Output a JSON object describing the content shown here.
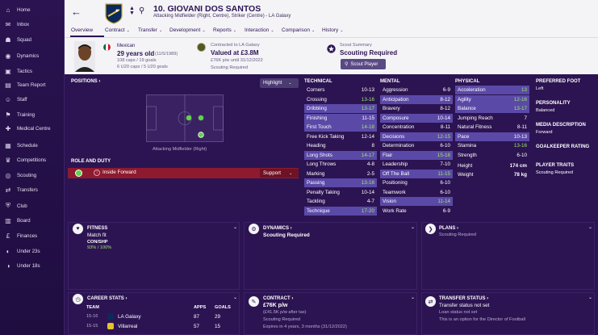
{
  "sidebar": {
    "items": [
      {
        "label": "Home",
        "icon": "home-icon",
        "glyph": "⌂"
      },
      {
        "label": "Inbox",
        "icon": "inbox-icon",
        "glyph": "✉"
      },
      {
        "label": "Squad",
        "icon": "squad-icon",
        "glyph": "☗"
      },
      {
        "label": "Dynamics",
        "icon": "dynamics-icon",
        "glyph": "◉"
      },
      {
        "label": "Tactics",
        "icon": "tactics-icon",
        "glyph": "▣"
      },
      {
        "label": "Team Report",
        "icon": "team-report-icon",
        "glyph": "▤"
      },
      {
        "label": "Staff",
        "icon": "staff-icon",
        "glyph": "☺"
      },
      {
        "label": "Training",
        "icon": "training-icon",
        "glyph": "⚑"
      },
      {
        "label": "Medical Centre",
        "icon": "medical-icon",
        "glyph": "✚"
      },
      {
        "label": "Schedule",
        "icon": "schedule-icon",
        "glyph": "▦"
      },
      {
        "label": "Competitions",
        "icon": "competitions-icon",
        "glyph": "♛"
      },
      {
        "label": "Scouting",
        "icon": "scouting-icon",
        "glyph": "◎"
      },
      {
        "label": "Transfers",
        "icon": "transfers-icon",
        "glyph": "⇄"
      },
      {
        "label": "Club",
        "icon": "club-icon",
        "glyph": "⛨"
      },
      {
        "label": "Board",
        "icon": "board-icon",
        "glyph": "▥"
      },
      {
        "label": "Finances",
        "icon": "finances-icon",
        "glyph": "£"
      },
      {
        "label": "Under 23s",
        "icon": "under23-icon",
        "glyph": "◐"
      },
      {
        "label": "Under 18s",
        "icon": "under18-icon",
        "glyph": "◑"
      }
    ]
  },
  "header": {
    "name": "10. GIOVANI DOS SANTOS",
    "role": "Attacking Midfielder (Right, Centre), Striker (Centre) - LA Galaxy"
  },
  "tabs": [
    "Overview",
    "Contract",
    "Transfer",
    "Development",
    "Reports",
    "Interaction",
    "Comparison",
    "History"
  ],
  "info": {
    "nationality": "Mexican",
    "age": "29 years old",
    "dob": "(11/5/1989)",
    "caps": "108 caps / 19 goals",
    "u20caps": "6 U20 caps / 5 U20 goals",
    "contract_label": "Contracted to LA Galaxy",
    "value": "Valued at £3.8M",
    "wage": "£76K p/w until 31/12/2022",
    "scouting": "Scouting Required",
    "scout_summary_label": "Scout Summary",
    "scout_summary_value": "Scouting Required",
    "scout_button": "Scout Player"
  },
  "positions": {
    "title": "POSITIONS",
    "highlight": "Highlight",
    "caption": "Attacking Midfielder (Right)",
    "role_duty_title": "ROLE AND DUTY",
    "role": "Inside Forward",
    "duty": "Support"
  },
  "technical": {
    "title": "TECHNICAL",
    "rows": [
      {
        "name": "Corners",
        "value": "10-13",
        "hl": false,
        "hi": false
      },
      {
        "name": "Crossing",
        "value": "13-16",
        "hl": false,
        "hi": true
      },
      {
        "name": "Dribbling",
        "value": "13-17",
        "hl": true,
        "hi": true
      },
      {
        "name": "Finishing",
        "value": "11-15",
        "hl": true,
        "hi": false
      },
      {
        "name": "First Touch",
        "value": "14-18",
        "hl": true,
        "hi": true
      },
      {
        "name": "Free Kick Taking",
        "value": "12-14",
        "hl": false,
        "hi": false
      },
      {
        "name": "Heading",
        "value": "8",
        "hl": false,
        "hi": false
      },
      {
        "name": "Long Shots",
        "value": "14-17",
        "hl": true,
        "hi": true
      },
      {
        "name": "Long Throws",
        "value": "4-8",
        "hl": false,
        "hi": false
      },
      {
        "name": "Marking",
        "value": "2-5",
        "hl": false,
        "hi": false
      },
      {
        "name": "Passing",
        "value": "13-16",
        "hl": true,
        "hi": true
      },
      {
        "name": "Penalty Taking",
        "value": "10-14",
        "hl": false,
        "hi": false
      },
      {
        "name": "Tackling",
        "value": "4-7",
        "hl": false,
        "hi": false
      },
      {
        "name": "Technique",
        "value": "17-20",
        "hl": true,
        "hi": true
      }
    ]
  },
  "mental": {
    "title": "MENTAL",
    "rows": [
      {
        "name": "Aggression",
        "value": "6-9",
        "hl": false,
        "hi": false
      },
      {
        "name": "Anticipation",
        "value": "8-12",
        "hl": true,
        "hi": false
      },
      {
        "name": "Bravery",
        "value": "8-12",
        "hl": false,
        "hi": false
      },
      {
        "name": "Composure",
        "value": "10-14",
        "hl": true,
        "hi": false
      },
      {
        "name": "Concentration",
        "value": "8-11",
        "hl": false,
        "hi": false
      },
      {
        "name": "Decisions",
        "value": "12-15",
        "hl": true,
        "hi": true
      },
      {
        "name": "Determination",
        "value": "6-10",
        "hl": false,
        "hi": false
      },
      {
        "name": "Flair",
        "value": "15-18",
        "hl": true,
        "hi": true
      },
      {
        "name": "Leadership",
        "value": "7-10",
        "hl": false,
        "hi": false
      },
      {
        "name": "Off The Ball",
        "value": "11-15",
        "hl": true,
        "hi": true
      },
      {
        "name": "Positioning",
        "value": "6-10",
        "hl": false,
        "hi": false
      },
      {
        "name": "Teamwork",
        "value": "6-10",
        "hl": false,
        "hi": false
      },
      {
        "name": "Vision",
        "value": "11-14",
        "hl": true,
        "hi": true
      },
      {
        "name": "Work Rate",
        "value": "6-9",
        "hl": false,
        "hi": false
      }
    ]
  },
  "physical": {
    "title": "PHYSICAL",
    "rows": [
      {
        "name": "Acceleration",
        "value": "13",
        "hl": true,
        "hi": true
      },
      {
        "name": "Agility",
        "value": "12-16",
        "hl": true,
        "hi": true
      },
      {
        "name": "Balance",
        "value": "13-17",
        "hl": true,
        "hi": true
      },
      {
        "name": "Jumping Reach",
        "value": "7",
        "hl": false,
        "hi": false
      },
      {
        "name": "Natural Fitness",
        "value": "8-11",
        "hl": false,
        "hi": false
      },
      {
        "name": "Pace",
        "value": "10-13",
        "hl": true,
        "hi": false
      },
      {
        "name": "Stamina",
        "value": "13-16",
        "hl": false,
        "hi": true
      },
      {
        "name": "Strength",
        "value": "6-10",
        "hl": false,
        "hi": false
      }
    ],
    "height_label": "Height",
    "height": "174 cm",
    "weight_label": "Weight",
    "weight": "78 kg"
  },
  "side": {
    "foot_title": "PREFERRED FOOT",
    "foot": "Left",
    "pers_title": "PERSONALITY",
    "pers": "Balanced",
    "media_title": "MEDIA DESCRIPTION",
    "media": "Forward",
    "gk_title": "GOALKEEPER RATING",
    "traits_title": "PLAYER TRAITS",
    "traits": "Scouting Required"
  },
  "fitness": {
    "title": "FITNESS",
    "status": "Match fit",
    "con_label": "CON/SHP",
    "con": "93%",
    "shp": "100%"
  },
  "dynamics": {
    "title": "DYNAMICS",
    "value": "Scouting Required"
  },
  "plans": {
    "title": "PLANS",
    "value": "Scouting Required"
  },
  "career": {
    "title": "CAREER STATS",
    "col_team": "TEAM",
    "col_apps": "APPS",
    "col_goals": "GOALS",
    "rows": [
      {
        "season": "15-16",
        "team": "LA Galaxy",
        "apps": "87",
        "goals": "29"
      },
      {
        "season": "15-15",
        "team": "Villarreal",
        "apps": "57",
        "goals": "15"
      }
    ]
  },
  "contract": {
    "title": "CONTRACT",
    "wage": "£76K p/w",
    "after_tax": "(£41.5K p/w after tax)",
    "scouting": "Scouting Required",
    "expires": "Expires in 4 years, 3 months (31/12/2022)"
  },
  "transfer": {
    "title": "TRANSFER STATUS",
    "status": "Transfer status not set",
    "loan": "Loan status not set",
    "note": "This is an option for the Director of Football"
  },
  "colors": {
    "accent": "#2c1452",
    "highlight": "#5b49a8",
    "good": "#9ee86a",
    "role_bar": "#8e1a2f"
  }
}
